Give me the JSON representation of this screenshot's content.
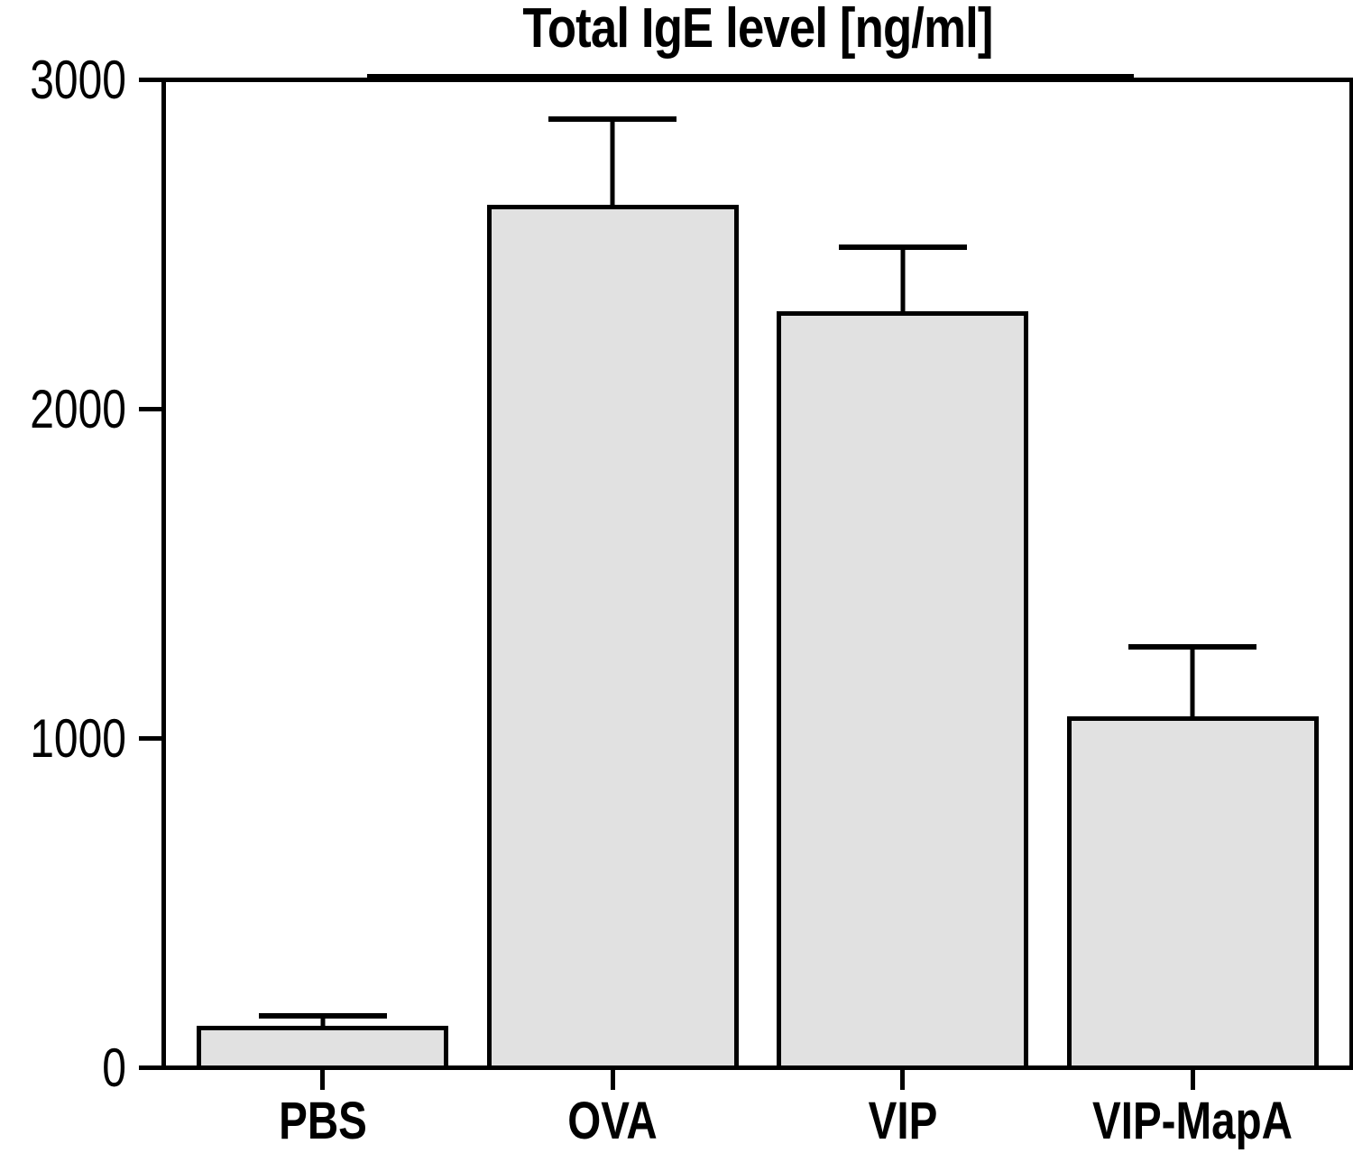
{
  "chart_data": {
    "type": "bar",
    "title": "Total IgE level [ng/ml]",
    "categories": [
      "PBS",
      "OVA",
      "VIP",
      "VIP-MapA"
    ],
    "values": [
      120,
      2625,
      2300,
      1065
    ],
    "errors_upper": [
      45,
      275,
      210,
      225
    ],
    "error_bar_style": "upper T-cap",
    "ylim": [
      0,
      3000
    ],
    "yticks": [
      0,
      1000,
      2000,
      3000
    ],
    "xlabel": "",
    "ylabel": "",
    "grid": false,
    "legend_position": "none",
    "plot_frame": "full box",
    "bar_fill_color": "#e1e1e1",
    "bar_border_color": "#000000",
    "axis_color": "#000000",
    "background_color": "#ffffff"
  }
}
